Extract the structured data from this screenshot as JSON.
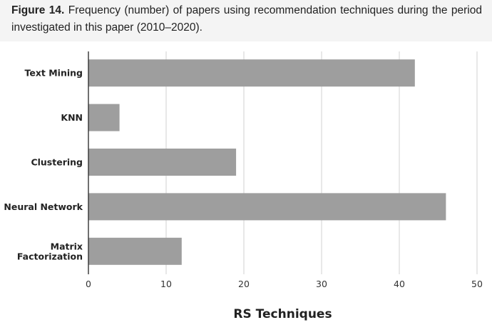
{
  "caption": {
    "label": "Figure 14.",
    "text": " Frequency (number) of papers using recommendation techniques during the period investigated in this paper (2010–2020)."
  },
  "colors": {
    "bar": "#9e9e9e",
    "grid": "#d9d9d9",
    "axis": "#333333",
    "caption_bg": "#f4f4f4"
  },
  "chart_data": {
    "type": "bar",
    "orientation": "horizontal",
    "categories": [
      "Text Mining",
      "KNN",
      "Clustering",
      "Neural Network",
      "Matrix Factorization"
    ],
    "category_lines": [
      [
        "Text Mining"
      ],
      [
        "KNN"
      ],
      [
        "Clustering"
      ],
      [
        "Neural Network"
      ],
      [
        "Matrix",
        "Factorization"
      ]
    ],
    "values": [
      42,
      4,
      19,
      46,
      12
    ],
    "title": "",
    "xlabel": "RS Techniques",
    "ylabel": "",
    "xlim": [
      0,
      50
    ],
    "xticks": [
      "0",
      "10",
      "20",
      "30",
      "40",
      "50"
    ],
    "grid": true,
    "legend": "none"
  }
}
